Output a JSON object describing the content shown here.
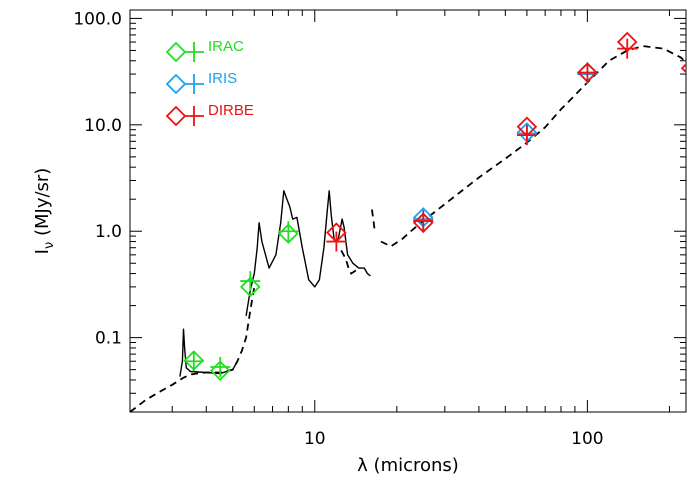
{
  "chart_data": {
    "type": "scatter",
    "title": "",
    "xlabel": "λ (microns)",
    "ylabel_main": "I",
    "ylabel_sub": "ν",
    "ylabel_unit": " (MJy/sr)",
    "x_scale": "log",
    "y_scale": "log",
    "xlim": [
      2.1,
      230
    ],
    "ylim": [
      0.02,
      120
    ],
    "x_ticks": [
      {
        "value": 10,
        "label": "10"
      },
      {
        "value": 100,
        "label": "100"
      }
    ],
    "y_ticks": [
      {
        "value": 0.1,
        "label": "0.1"
      },
      {
        "value": 1,
        "label": "1.0"
      },
      {
        "value": 10,
        "label": "10.0"
      },
      {
        "value": 100,
        "label": "100.0"
      }
    ],
    "grid": false,
    "legend_position": "top-left",
    "legend": [
      {
        "label": "IRAC",
        "color": "#22dd22"
      },
      {
        "label": "IRIS",
        "color": "#1ea0ee"
      },
      {
        "label": "DIRBE",
        "color": "#ee1111"
      }
    ],
    "series": [
      {
        "name": "IRAC",
        "color": "#22dd22",
        "diamonds": [
          [
            3.6,
            0.061
          ],
          [
            4.5,
            0.049
          ],
          [
            5.8,
            0.3
          ],
          [
            8.0,
            0.95
          ]
        ],
        "crosses": [
          [
            3.6,
            0.06
          ],
          [
            4.5,
            0.053
          ],
          [
            5.8,
            0.34
          ],
          [
            8.0,
            1.0
          ]
        ]
      },
      {
        "name": "IRIS",
        "color": "#1ea0ee",
        "diamonds": [
          [
            25,
            1.35
          ],
          [
            60,
            8.5
          ],
          [
            100,
            31
          ]
        ],
        "crosses": [
          [
            25,
            1.3
          ],
          [
            60,
            8.3
          ],
          [
            100,
            30
          ]
        ]
      },
      {
        "name": "DIRBE",
        "color": "#ee1111",
        "diamonds": [
          [
            12,
            0.97
          ],
          [
            25,
            1.2
          ],
          [
            60,
            9.6
          ],
          [
            100,
            31
          ],
          [
            140,
            60
          ],
          [
            240,
            34
          ]
        ],
        "crosses": [
          [
            12,
            0.8
          ],
          [
            25,
            1.25
          ],
          [
            60,
            8.0
          ],
          [
            100,
            31
          ],
          [
            140,
            52
          ]
        ]
      }
    ],
    "model_dashed_segments": [
      [
        [
          2.1,
          0.02
        ],
        [
          2.4,
          0.026
        ],
        [
          2.7,
          0.031
        ],
        [
          3.0,
          0.036
        ],
        [
          3.3,
          0.042
        ],
        [
          3.5,
          0.045
        ],
        [
          3.7,
          0.046
        ],
        [
          4.0,
          0.047
        ],
        [
          4.5,
          0.047
        ],
        [
          5.0,
          0.05
        ],
        [
          5.2,
          0.06
        ],
        [
          5.4,
          0.075
        ],
        [
          5.6,
          0.1
        ],
        [
          5.8,
          0.18
        ],
        [
          6.0,
          0.3
        ]
      ],
      [
        [
          12.5,
          0.66
        ],
        [
          13.0,
          0.55
        ],
        [
          13.3,
          0.45
        ],
        [
          13.6,
          0.4
        ],
        [
          14.0,
          0.42
        ],
        [
          14.5,
          0.45
        ]
      ],
      [
        [
          16.2,
          1.6
        ],
        [
          16.4,
          1.3
        ],
        [
          16.6,
          1.0
        ]
      ],
      [
        [
          17.5,
          0.8
        ],
        [
          19,
          0.72
        ],
        [
          21,
          0.85
        ],
        [
          23,
          1.05
        ],
        [
          25,
          1.25
        ],
        [
          30,
          1.8
        ],
        [
          40,
          3.2
        ],
        [
          50,
          4.8
        ],
        [
          60,
          6.8
        ],
        [
          70,
          9.5
        ],
        [
          80,
          14
        ],
        [
          100,
          25
        ],
        [
          120,
          40
        ],
        [
          140,
          50
        ],
        [
          160,
          55
        ],
        [
          190,
          52
        ],
        [
          220,
          43
        ],
        [
          240,
          35
        ]
      ]
    ],
    "model_solid_segments": [
      [
        [
          3.2,
          0.043
        ],
        [
          3.27,
          0.06
        ],
        [
          3.3,
          0.12
        ],
        [
          3.33,
          0.08
        ],
        [
          3.38,
          0.052
        ],
        [
          3.5,
          0.048
        ],
        [
          4.0,
          0.047
        ],
        [
          4.5,
          0.046
        ],
        [
          5.0,
          0.05
        ],
        [
          5.2,
          0.06
        ]
      ],
      [
        [
          5.6,
          0.16
        ],
        [
          5.8,
          0.28
        ],
        [
          6.0,
          0.4
        ],
        [
          6.15,
          0.7
        ],
        [
          6.25,
          1.2
        ],
        [
          6.4,
          0.8
        ],
        [
          6.8,
          0.45
        ],
        [
          7.2,
          0.6
        ],
        [
          7.5,
          1.2
        ],
        [
          7.7,
          2.4
        ],
        [
          7.9,
          2.0
        ],
        [
          8.1,
          1.7
        ],
        [
          8.3,
          1.3
        ],
        [
          8.6,
          1.35
        ],
        [
          9.0,
          0.7
        ],
        [
          9.5,
          0.35
        ],
        [
          10.0,
          0.3
        ],
        [
          10.4,
          0.35
        ],
        [
          10.8,
          0.7
        ],
        [
          11.1,
          1.5
        ],
        [
          11.3,
          2.4
        ],
        [
          11.5,
          1.4
        ],
        [
          11.8,
          0.8
        ],
        [
          12.2,
          0.85
        ],
        [
          12.6,
          1.3
        ],
        [
          12.8,
          1.1
        ],
        [
          13.2,
          0.6
        ],
        [
          13.8,
          0.5
        ],
        [
          14.5,
          0.45
        ],
        [
          15.2,
          0.45
        ],
        [
          15.6,
          0.4
        ],
        [
          16.0,
          0.38
        ]
      ]
    ]
  }
}
